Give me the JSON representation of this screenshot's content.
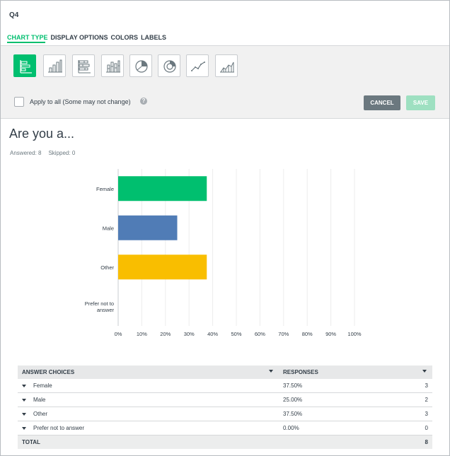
{
  "question": {
    "label": "Q4",
    "title": "Are you a...",
    "answered": "Answered: 8",
    "skipped": "Skipped: 0"
  },
  "tabs": [
    {
      "label": "CHART TYPE",
      "active": true
    },
    {
      "label": "DISPLAY OPTIONS",
      "active": false
    },
    {
      "label": "COLORS",
      "active": false
    },
    {
      "label": "LABELS",
      "active": false
    }
  ],
  "chart_types": [
    {
      "icon": "horizontal-bar-chart-icon",
      "active": true
    },
    {
      "icon": "vertical-bar-chart-icon",
      "active": false
    },
    {
      "icon": "stacked-horizontal-bar-icon",
      "active": false
    },
    {
      "icon": "stacked-vertical-bar-icon",
      "active": false
    },
    {
      "icon": "pie-chart-icon",
      "active": false
    },
    {
      "icon": "donut-chart-icon",
      "active": false
    },
    {
      "icon": "line-chart-icon",
      "active": false
    },
    {
      "icon": "area-chart-icon",
      "active": false
    }
  ],
  "apply": {
    "label": "Apply to all (Some may not change)",
    "help": "?"
  },
  "buttons": {
    "cancel": "CANCEL",
    "save": "SAVE"
  },
  "chart_data": {
    "type": "bar",
    "orientation": "horizontal",
    "categories": [
      "Female",
      "Male",
      "Other",
      "Prefer not to answer"
    ],
    "values": [
      37.5,
      25.0,
      37.5,
      0.0
    ],
    "colors": [
      "#00bf6f",
      "#507cb6",
      "#f9be00",
      "#cccccc"
    ],
    "xlim": [
      0,
      100
    ],
    "xticks": [
      "0%",
      "10%",
      "20%",
      "30%",
      "40%",
      "50%",
      "60%",
      "70%",
      "80%",
      "90%",
      "100%"
    ],
    "grid": true
  },
  "table": {
    "headers": [
      "ANSWER CHOICES",
      "RESPONSES"
    ],
    "rows": [
      {
        "choice": "Female",
        "percent": "37.50%",
        "count": "3"
      },
      {
        "choice": "Male",
        "percent": "25.00%",
        "count": "2"
      },
      {
        "choice": "Other",
        "percent": "37.50%",
        "count": "3"
      },
      {
        "choice": "Prefer not to answer",
        "percent": "0.00%",
        "count": "0"
      }
    ],
    "total_label": "TOTAL",
    "total_count": "8"
  }
}
